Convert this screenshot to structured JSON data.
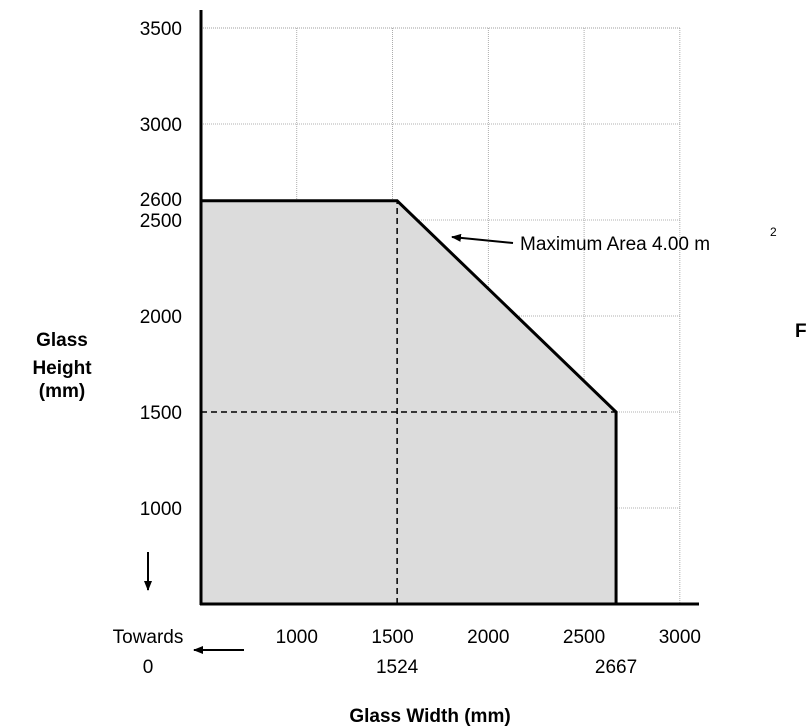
{
  "chart_data": {
    "type": "area",
    "xlabel": "Glass Width (mm)",
    "ylabel_lines": [
      "Glass",
      "Height",
      "(mm)"
    ],
    "xlim": [
      500,
      3100
    ],
    "ylim": [
      500,
      3500
    ],
    "grid": true,
    "x_ticks": [
      1000,
      1500,
      2000,
      2500,
      3000
    ],
    "x_tick_labels": [
      "1000",
      "1500",
      "2000",
      "2500",
      "3000"
    ],
    "x_extra_ticks": [
      1524,
      2667
    ],
    "x_extra_tick_labels": [
      "1524",
      "2667"
    ],
    "y_ticks": [
      1000,
      1500,
      2000,
      2500,
      3000,
      3500
    ],
    "y_tick_labels": [
      "1000",
      "1500",
      "2000",
      "2500",
      "3000",
      "3500"
    ],
    "y_extra_ticks": [
      2600
    ],
    "y_extra_tick_labels": [
      "2600"
    ],
    "series": [
      {
        "values_x": [
          500,
          1524,
          2667,
          2667
        ],
        "values_y": [
          2600,
          2600,
          1500,
          500
        ],
        "fill": "#dcdcdc",
        "stroke": "#000000"
      }
    ],
    "reference_lines": [
      {
        "type": "vertical",
        "x": 1524,
        "y_from": 500,
        "y_to": 2600
      },
      {
        "type": "horizontal",
        "y": 1500,
        "x_from": 500,
        "x_to": 2667
      }
    ],
    "annotations": {
      "max_area_label": "Maximum Area 4.00 m",
      "max_area_sup": "2",
      "towards_label_1": "Towards",
      "towards_label_2": "0",
      "cut_letter": "F"
    }
  }
}
